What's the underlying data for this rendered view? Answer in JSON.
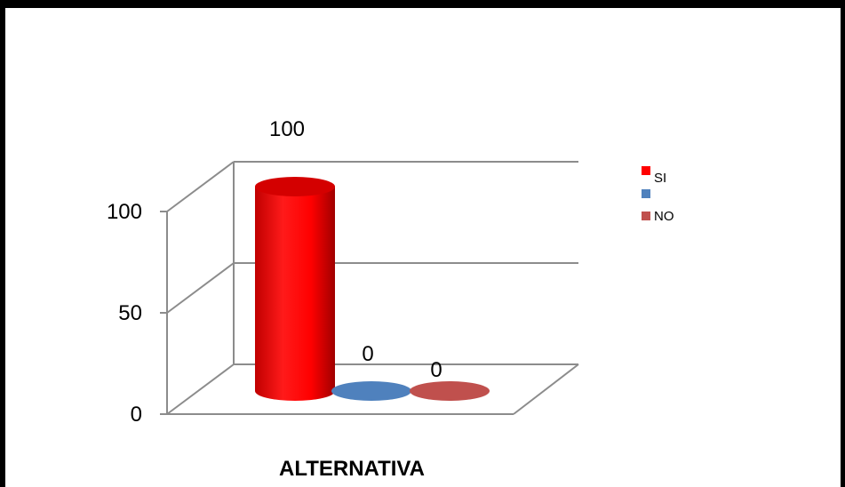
{
  "chart_data": {
    "type": "bar",
    "style": "3d-cylinder",
    "categories": [
      "ALTERNATIVA"
    ],
    "series": [
      {
        "name": "SI",
        "values": [
          100
        ],
        "color": "#ff0000"
      },
      {
        "name": "",
        "values": [
          0
        ],
        "color": "#4f81bd"
      },
      {
        "name": "NO",
        "values": [
          0
        ],
        "color": "#c0504d"
      }
    ],
    "data_labels": [
      "100",
      "0",
      "0"
    ],
    "xlabel": "ALTERNATIVA",
    "ylabel": "",
    "ylim": [
      0,
      100
    ],
    "yticks": [
      "0",
      "50",
      "100"
    ],
    "grid": true,
    "legend": {
      "position": "right",
      "entries": [
        "SI",
        "",
        "NO"
      ]
    }
  }
}
